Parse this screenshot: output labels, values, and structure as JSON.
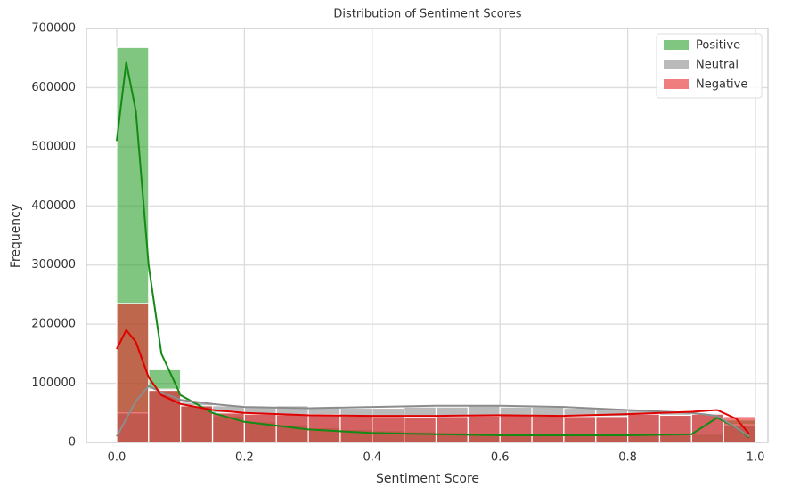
{
  "chart_data": {
    "type": "histogram",
    "title": "Distribution of Sentiment Scores",
    "x_label": "Sentiment Score",
    "y_label": "Frequency",
    "bins": [
      0,
      0.05,
      0.1,
      0.15,
      0.2,
      0.25,
      0.3,
      0.35,
      0.4,
      0.45,
      0.5,
      0.55,
      0.6,
      0.65,
      0.7,
      0.75,
      0.8,
      0.85,
      0.9,
      0.95,
      1.0
    ],
    "kde_x": [
      0,
      0.015,
      0.03,
      0.05,
      0.07,
      0.1,
      0.15,
      0.2,
      0.3,
      0.4,
      0.5,
      0.6,
      0.7,
      0.8,
      0.9,
      0.94,
      0.97,
      0.99
    ],
    "series": [
      {
        "name": "Positive",
        "color": "#2ca02c",
        "line_color": "#138a13",
        "values": [
          668000,
          123000,
          62000,
          45000,
          35000,
          30000,
          25000,
          22000,
          20000,
          18000,
          17000,
          16000,
          15000,
          15000,
          14000,
          14000,
          14000,
          13000,
          14000,
          38000
        ],
        "kde": [
          510000,
          643000,
          560000,
          300000,
          150000,
          80000,
          50000,
          35000,
          22000,
          16000,
          14000,
          12000,
          12000,
          12000,
          14000,
          42000,
          25000,
          8000
        ]
      },
      {
        "name": "Neutral",
        "color": "#8c8c8c",
        "line_color": "#8c8c8c",
        "values": [
          50000,
          90000,
          68000,
          62000,
          60000,
          62000,
          60000,
          58000,
          58000,
          60000,
          60000,
          62000,
          60000,
          60000,
          58000,
          57000,
          55000,
          52000,
          50000,
          30000
        ],
        "kde": [
          10000,
          40000,
          70000,
          95000,
          85000,
          72000,
          65000,
          60000,
          58000,
          60000,
          62000,
          62000,
          60000,
          55000,
          50000,
          45000,
          25000,
          10000
        ]
      },
      {
        "name": "Negative",
        "color": "#e8282a",
        "line_color": "#e00000",
        "values": [
          235000,
          88000,
          62000,
          50000,
          48000,
          47000,
          47000,
          45000,
          44000,
          43000,
          44000,
          45000,
          46000,
          45000,
          44000,
          44000,
          48000,
          46000,
          48000,
          44000
        ],
        "kde": [
          158000,
          190000,
          170000,
          110000,
          80000,
          65000,
          55000,
          50000,
          46000,
          45000,
          45000,
          46000,
          45000,
          48000,
          52000,
          55000,
          40000,
          15000
        ]
      }
    ],
    "xlim": [
      -0.0474,
      1.0195
    ],
    "ylim": [
      0,
      700000
    ],
    "xticks": [
      {
        "value": 0,
        "label": "0.0"
      },
      0.2,
      0.4,
      0.6,
      0.8,
      {
        "value": 1,
        "label": "1.0"
      }
    ],
    "yticks": [
      0,
      100000,
      200000,
      300000,
      400000,
      500000,
      600000,
      700000
    ],
    "grid": true,
    "legend": "upper-right"
  }
}
